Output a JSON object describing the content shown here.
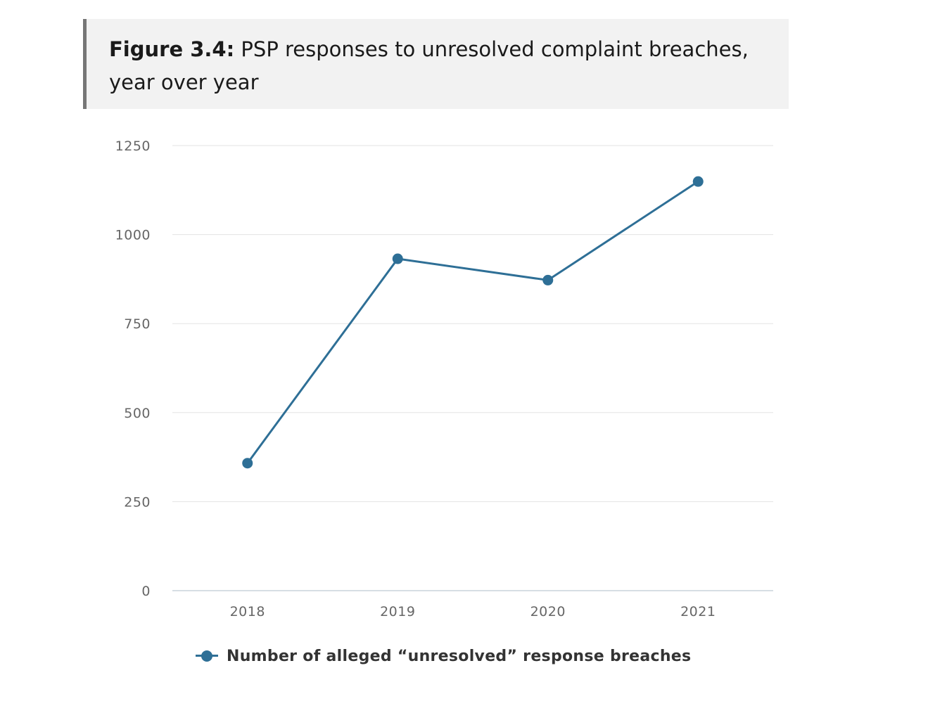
{
  "header": {
    "figure_label": "Figure 3.4:",
    "title": "PSP responses to unresolved complaint breaches, year over year"
  },
  "colors": {
    "series": "#2e6f96",
    "grid": "#e3e3e3",
    "axis": "#c9d3dc",
    "tick_text": "#666666",
    "header_bg": "#f2f2f2"
  },
  "legend": {
    "label": "Number of alleged “unresolved” response breaches",
    "marker_icon": "line-dot-marker",
    "placement": "bottom"
  },
  "chart_data": {
    "type": "line",
    "categories": [
      "2018",
      "2019",
      "2020",
      "2021"
    ],
    "series": [
      {
        "name": "Number of alleged “unresolved” response breaches",
        "values": [
          358,
          932,
          872,
          1149
        ]
      }
    ],
    "ylim": [
      0,
      1250
    ],
    "yticks": [
      "0",
      "250",
      "500",
      "750",
      "1000",
      "1250"
    ],
    "ytick_values": [
      0,
      250,
      500,
      750,
      1000,
      1250
    ],
    "grid": true,
    "legend_position": "bottom"
  }
}
